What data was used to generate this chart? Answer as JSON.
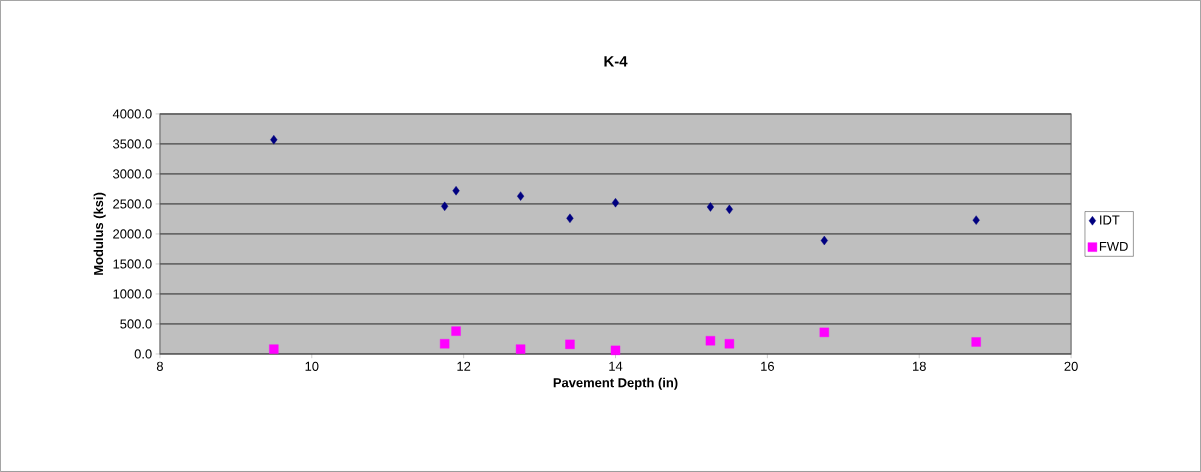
{
  "chart_data": {
    "type": "scatter",
    "title": "K-4",
    "xlabel": "Pavement Depth (in)",
    "ylabel": "Modulus (ksi)",
    "xlim": [
      8,
      20
    ],
    "xticks": [
      8,
      10,
      12,
      14,
      16,
      18,
      20
    ],
    "ylim": [
      0,
      4000
    ],
    "yticks": [
      {
        "value": 0,
        "label": "0.0"
      },
      {
        "value": 500,
        "label": "500.0"
      },
      {
        "value": 1000,
        "label": "1000.0"
      },
      {
        "value": 1500,
        "label": "1500.0"
      },
      {
        "value": 2000,
        "label": "2000.0"
      },
      {
        "value": 2500,
        "label": "2500.0"
      },
      {
        "value": 3000,
        "label": "3000.0"
      },
      {
        "value": 3500,
        "label": "3500.0"
      },
      {
        "value": 4000,
        "label": "4000.0"
      }
    ],
    "grid": "y",
    "legend": "right",
    "series": [
      {
        "name": "IDT",
        "color": "#000080",
        "marker": "diamond",
        "x": [
          9.5,
          11.75,
          11.9,
          12.75,
          13.4,
          14.0,
          15.25,
          15.5,
          16.75,
          18.75
        ],
        "values": [
          3570,
          2460,
          2720,
          2630,
          2260,
          2520,
          2450,
          2410,
          1890,
          2230
        ]
      },
      {
        "name": "FWD",
        "color": "#ff00ff",
        "marker": "square",
        "x": [
          9.5,
          11.75,
          11.9,
          12.75,
          13.4,
          14.0,
          15.25,
          15.5,
          16.75,
          18.75
        ],
        "values": [
          80,
          170,
          380,
          80,
          160,
          60,
          220,
          170,
          360,
          200
        ]
      }
    ]
  }
}
